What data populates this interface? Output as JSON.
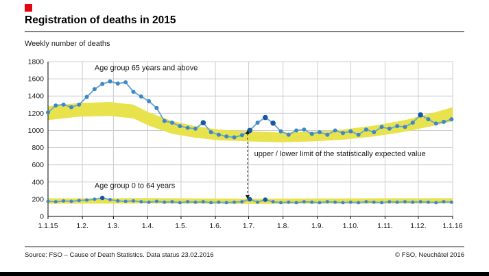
{
  "header": {
    "title": "Registration of deaths in 2015",
    "brand_color": "#e30613"
  },
  "chart_data": {
    "type": "line",
    "title": "Registration of deaths in 2015",
    "subtitle": "Weekly number of deaths",
    "ylabel": "Weekly number of deaths",
    "ylim": [
      0,
      1800
    ],
    "yticks": [
      0,
      200,
      400,
      600,
      800,
      1000,
      1200,
      1400,
      1600,
      1800
    ],
    "x_total_days": 365,
    "week_interval_days": 7,
    "x_axis_days": [
      0,
      31,
      59,
      90,
      120,
      151,
      181,
      212,
      243,
      273,
      304,
      334,
      365
    ],
    "x_tick_labels": [
      "1.1.15",
      "1.2.",
      "1.3.",
      "1.4.",
      "1.5.",
      "1.6.",
      "1.7.",
      "1.8.",
      "1.9.",
      "1.10.",
      "1.11.",
      "1.12.",
      "1.1.16"
    ],
    "grid": true,
    "legend_position": "inline-annotations",
    "series": [
      {
        "name": "Age group 65 years and above",
        "marker_radius": 3,
        "values": [
          1210,
          1290,
          1300,
          1270,
          1300,
          1390,
          1480,
          1540,
          1570,
          1545,
          1560,
          1450,
          1395,
          1340,
          1260,
          1110,
          1090,
          1050,
          1030,
          1020,
          1090,
          980,
          950,
          930,
          920,
          945,
          1000,
          1090,
          1150,
          1085,
          990,
          950,
          1000,
          1010,
          960,
          980,
          950,
          1000,
          970,
          990,
          950,
          1010,
          980,
          1040,
          1020,
          1050,
          1040,
          1090,
          1180,
          1130,
          1080,
          1100,
          1130
        ],
        "highlight_indices": [
          20,
          26,
          28,
          29,
          48
        ]
      },
      {
        "name": "Age group 0 to 64 years",
        "marker_radius": 2.5,
        "values": [
          175,
          170,
          180,
          175,
          185,
          190,
          200,
          215,
          195,
          180,
          175,
          180,
          170,
          165,
          175,
          165,
          170,
          160,
          170,
          165,
          170,
          160,
          165,
          160,
          165,
          170,
          200,
          165,
          195,
          170,
          160,
          165,
          160,
          170,
          165,
          160,
          170,
          165,
          160,
          165,
          160,
          170,
          165,
          160,
          170,
          165,
          170,
          165,
          170,
          165,
          160,
          170,
          165
        ],
        "highlight_indices": [
          7,
          26,
          28
        ]
      }
    ],
    "bands": [
      {
        "name": "expected-range-65plus",
        "points": [
          {
            "day": 0,
            "upper": 1280,
            "lower": 1120
          },
          {
            "day": 28,
            "upper": 1320,
            "lower": 1160
          },
          {
            "day": 56,
            "upper": 1330,
            "lower": 1168
          },
          {
            "day": 77,
            "upper": 1300,
            "lower": 1140
          },
          {
            "day": 91,
            "upper": 1210,
            "lower": 1055
          },
          {
            "day": 112,
            "upper": 1110,
            "lower": 960
          },
          {
            "day": 133,
            "upper": 1050,
            "lower": 915
          },
          {
            "day": 154,
            "upper": 1010,
            "lower": 885
          },
          {
            "day": 182,
            "upper": 990,
            "lower": 872
          },
          {
            "day": 210,
            "upper": 975,
            "lower": 862
          },
          {
            "day": 238,
            "upper": 985,
            "lower": 872
          },
          {
            "day": 266,
            "upper": 1010,
            "lower": 892
          },
          {
            "day": 294,
            "upper": 1055,
            "lower": 930
          },
          {
            "day": 322,
            "upper": 1120,
            "lower": 985
          },
          {
            "day": 350,
            "upper": 1215,
            "lower": 1060
          },
          {
            "day": 365,
            "upper": 1270,
            "lower": 1105
          }
        ]
      },
      {
        "name": "expected-range-0to64",
        "points": [
          {
            "day": 0,
            "upper": 210,
            "lower": 148
          },
          {
            "day": 91,
            "upper": 213,
            "lower": 150
          },
          {
            "day": 182,
            "upper": 207,
            "lower": 145
          },
          {
            "day": 273,
            "upper": 210,
            "lower": 148
          },
          {
            "day": 365,
            "upper": 212,
            "lower": 150
          }
        ]
      }
    ],
    "annotations": {
      "age65_label": {
        "text": "Age group 65 years and above",
        "day": 42,
        "value": 1700
      },
      "age064_label": {
        "text": "Age group 0 to 64 years",
        "day": 42,
        "value": 330
      },
      "band_label": {
        "text": "upper / lower limit of the statistically expected value",
        "day": 186,
        "value": 700
      },
      "arrow": {
        "day": 180,
        "from_value": 1005,
        "to_value": 200
      }
    },
    "colors": {
      "line": "#6fa8d6",
      "marker": "#3e87c6",
      "marker_dark": "#155a9e",
      "band": "#e8e34d",
      "grid": "#cccccc",
      "axis": "#000000",
      "text": "#1a1a1a"
    }
  },
  "footer": {
    "source": "Source: FSO – Cause of Death Statistics. Data status 23.02.2016",
    "copyright": "© FSO, Neuchâtel 2016"
  }
}
